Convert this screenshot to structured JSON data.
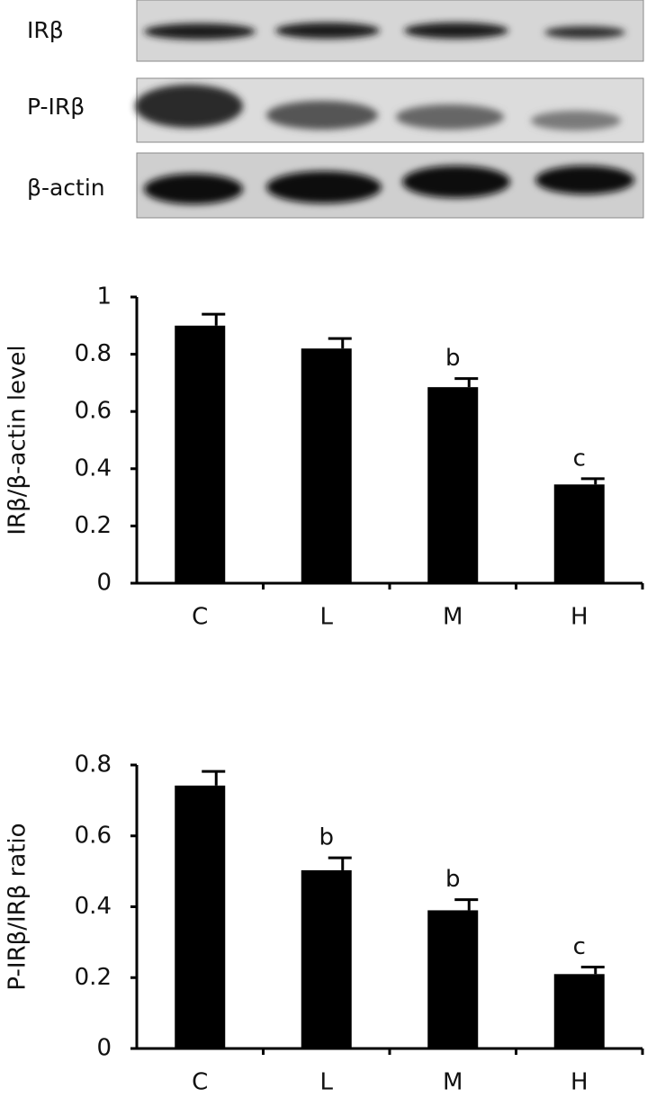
{
  "blot": {
    "labels": [
      "IRβ",
      "P-IRβ",
      "β-actin"
    ]
  },
  "chart_data": [
    {
      "type": "bar",
      "y_label": "IRβ/β-actin level",
      "categories": [
        "C",
        "L",
        "M",
        "H"
      ],
      "values": [
        0.9,
        0.82,
        0.685,
        0.345
      ],
      "errors": [
        0.04,
        0.035,
        0.03,
        0.02
      ],
      "annotations": [
        null,
        null,
        "b",
        "c"
      ],
      "color": "#000000",
      "ylim": [
        0,
        1
      ],
      "yticks": [
        0,
        0.2,
        0.4,
        0.6,
        0.8,
        1
      ],
      "grid": false
    },
    {
      "type": "bar",
      "y_label": "P-IRβ/IRβ ratio",
      "categories": [
        "C",
        "L",
        "M",
        "H"
      ],
      "values": [
        0.742,
        0.503,
        0.39,
        0.21
      ],
      "errors": [
        0.04,
        0.035,
        0.03,
        0.02
      ],
      "annotations": [
        null,
        "b",
        "b",
        "c"
      ],
      "color": "#000000",
      "ylim": [
        0,
        0.8
      ],
      "yticks": [
        0,
        0.2,
        0.4,
        0.6,
        0.8
      ],
      "grid": false
    }
  ]
}
